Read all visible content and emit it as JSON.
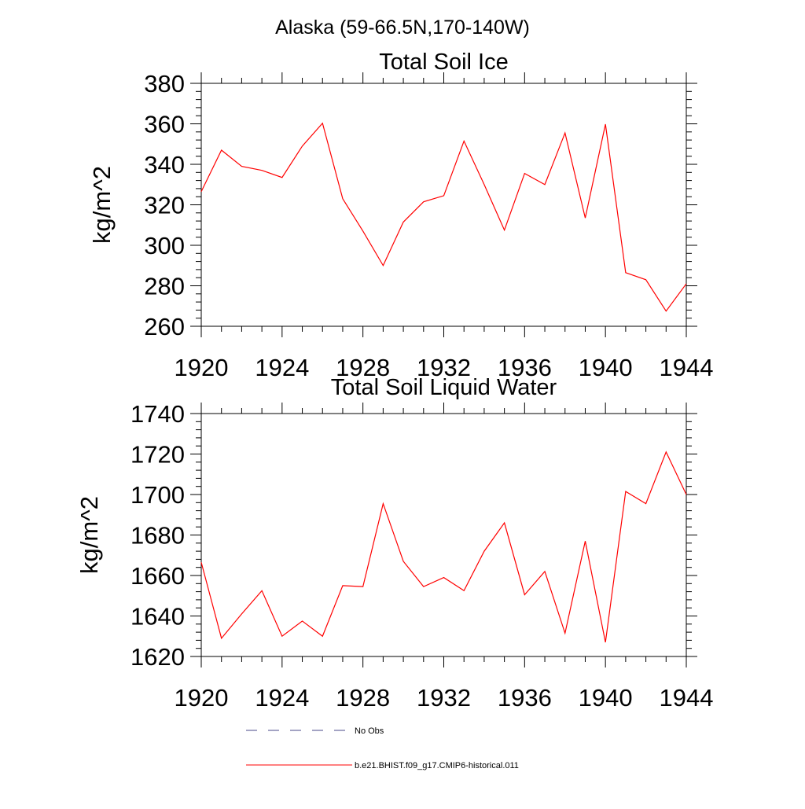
{
  "figure": {
    "title": "Alaska (59-66.5N,170-140W)"
  },
  "chart_data": [
    {
      "type": "line",
      "title": "Total Soil Ice",
      "xlabel": "",
      "ylabel": "kg/m^2",
      "xlim": [
        1920,
        1944
      ],
      "ylim": [
        260,
        380
      ],
      "x_ticks": [
        1920,
        1924,
        1928,
        1932,
        1936,
        1940,
        1944
      ],
      "y_ticks": [
        260,
        280,
        300,
        320,
        340,
        360,
        380
      ],
      "grid": false,
      "series": [
        {
          "name": "b.e21.BHIST.f09_g17.CMIP6-historical.011",
          "color": "#ff0000",
          "x": [
            1920,
            1921,
            1922,
            1923,
            1924,
            1925,
            1926,
            1927,
            1928,
            1929,
            1930,
            1931,
            1932,
            1933,
            1934,
            1935,
            1936,
            1937,
            1938,
            1939,
            1940,
            1941,
            1942,
            1943,
            1944
          ],
          "values": [
            326.5,
            347,
            339,
            337,
            333.5,
            349,
            360.3,
            323,
            307,
            290,
            311.5,
            321.5,
            324.5,
            351.5,
            330,
            307.5,
            335.5,
            330,
            355.5,
            313.5,
            359.8,
            286.5,
            283,
            267.5,
            281
          ]
        }
      ]
    },
    {
      "type": "line",
      "title": "Total Soil Liquid Water",
      "xlabel": "",
      "ylabel": "kg/m^2",
      "xlim": [
        1920,
        1944
      ],
      "ylim": [
        1620,
        1740
      ],
      "x_ticks": [
        1920,
        1924,
        1928,
        1932,
        1936,
        1940,
        1944
      ],
      "y_ticks": [
        1620,
        1640,
        1660,
        1680,
        1700,
        1720,
        1740
      ],
      "grid": false,
      "series": [
        {
          "name": "b.e21.BHIST.f09_g17.CMIP6-historical.011",
          "color": "#ff0000",
          "x": [
            1920,
            1921,
            1922,
            1923,
            1924,
            1925,
            1926,
            1927,
            1928,
            1929,
            1930,
            1931,
            1932,
            1933,
            1934,
            1935,
            1936,
            1937,
            1938,
            1939,
            1940,
            1941,
            1942,
            1943,
            1944
          ],
          "values": [
            1666.5,
            1629,
            1641,
            1652.5,
            1630,
            1637.5,
            1630,
            1655,
            1654.5,
            1695.5,
            1667,
            1654.5,
            1659,
            1652.5,
            1672,
            1686,
            1650.5,
            1662,
            1631.5,
            1677,
            1627,
            1701.5,
            1695.5,
            1721,
            1700
          ]
        }
      ]
    }
  ],
  "legend": {
    "items": [
      {
        "label": "No Obs",
        "color": "#4a4a8a",
        "dash": "14,14"
      },
      {
        "label": "b.e21.BHIST.f09_g17.CMIP6-historical.011",
        "color": "#ff0000",
        "dash": ""
      }
    ]
  }
}
